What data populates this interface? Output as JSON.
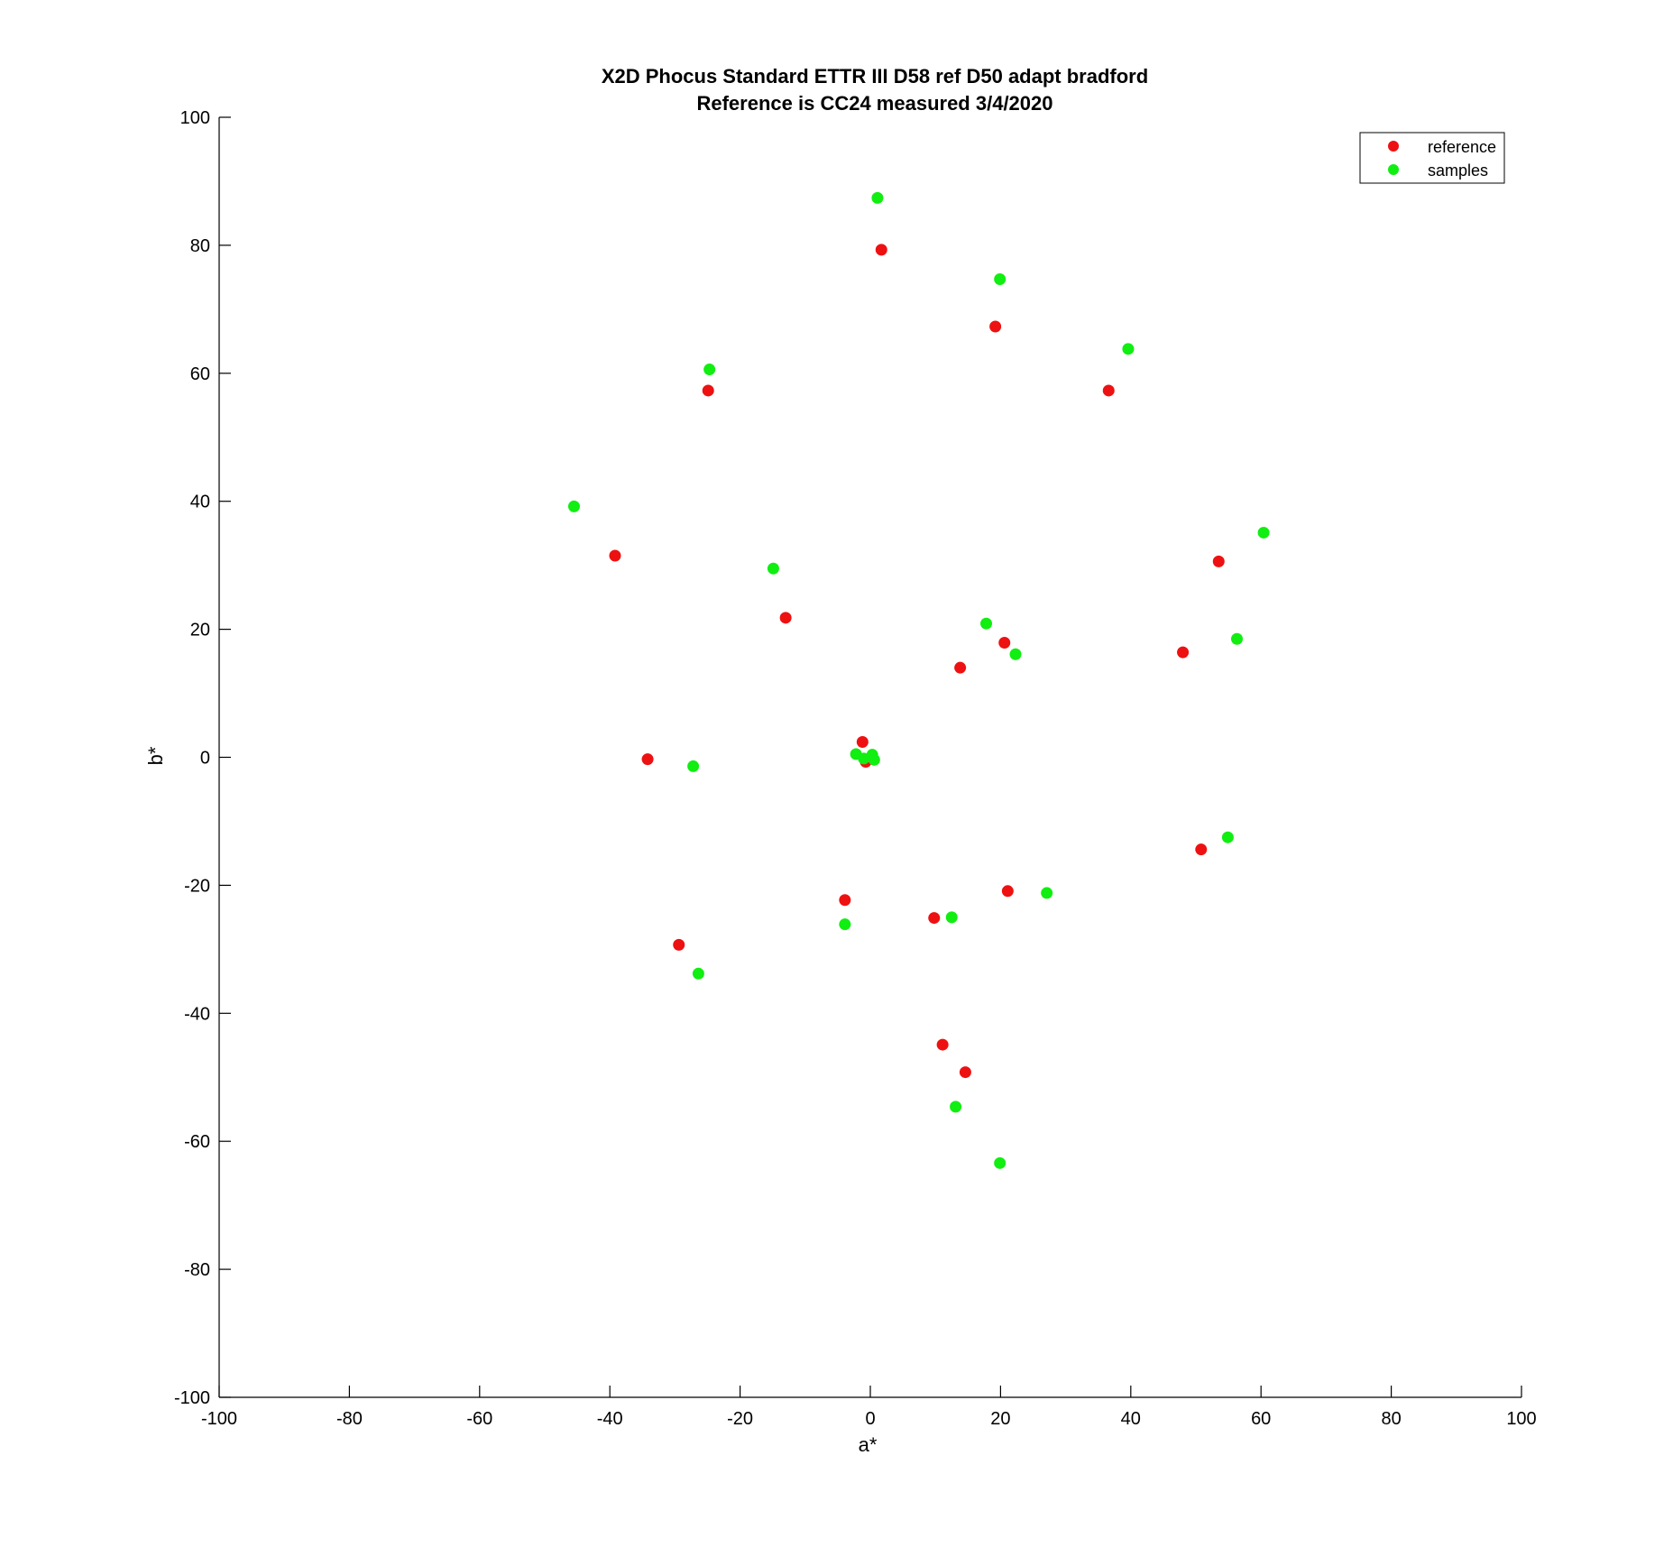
{
  "chart_data": {
    "type": "scatter",
    "title": "X2D Phocus Standard ETTR III D58 ref D50 adapt bradford",
    "subtitle": "Reference is CC24 measured 3/4/2020",
    "xlabel": "a*",
    "ylabel": "b*",
    "xlim": [
      -100,
      100
    ],
    "ylim": [
      -100,
      100
    ],
    "xticks": [
      -100,
      -80,
      -60,
      -40,
      -20,
      0,
      20,
      40,
      60,
      80,
      100
    ],
    "yticks": [
      -100,
      -80,
      -60,
      -40,
      -20,
      0,
      20,
      40,
      60,
      80,
      100
    ],
    "grid": false,
    "legend_position": "top-right",
    "series": [
      {
        "name": "reference",
        "color": "#ee1111",
        "points": [
          [
            1.7,
            79.3
          ],
          [
            19.2,
            67.3
          ],
          [
            -24.9,
            57.3
          ],
          [
            36.6,
            57.3
          ],
          [
            -39.2,
            31.5
          ],
          [
            53.5,
            30.6
          ],
          [
            -13.0,
            21.8
          ],
          [
            20.6,
            17.9
          ],
          [
            48.0,
            16.4
          ],
          [
            13.8,
            14.0
          ],
          [
            -1.2,
            2.4
          ],
          [
            -34.2,
            -0.3
          ],
          [
            -0.7,
            -0.7
          ],
          [
            0.1,
            -0.2
          ],
          [
            50.8,
            -14.4
          ],
          [
            21.1,
            -20.9
          ],
          [
            -3.9,
            -22.3
          ],
          [
            9.8,
            -25.1
          ],
          [
            -29.4,
            -29.3
          ],
          [
            11.1,
            -44.9
          ],
          [
            14.6,
            -49.2
          ]
        ]
      },
      {
        "name": "samples",
        "color": "#11ee11",
        "points": [
          [
            1.1,
            87.4
          ],
          [
            19.9,
            74.7
          ],
          [
            -24.7,
            60.6
          ],
          [
            39.6,
            63.8
          ],
          [
            -45.5,
            39.2
          ],
          [
            60.4,
            35.1
          ],
          [
            -14.9,
            29.5
          ],
          [
            17.8,
            20.9
          ],
          [
            22.3,
            16.1
          ],
          [
            56.3,
            18.5
          ],
          [
            -27.2,
            -1.4
          ],
          [
            -2.2,
            0.5
          ],
          [
            0.3,
            0.4
          ],
          [
            -1.0,
            -0.2
          ],
          [
            0.6,
            -0.4
          ],
          [
            54.9,
            -12.5
          ],
          [
            27.1,
            -21.2
          ],
          [
            12.5,
            -25.0
          ],
          [
            -3.9,
            -26.1
          ],
          [
            -26.4,
            -33.8
          ],
          [
            13.1,
            -54.6
          ],
          [
            19.9,
            -63.4
          ]
        ]
      }
    ]
  }
}
